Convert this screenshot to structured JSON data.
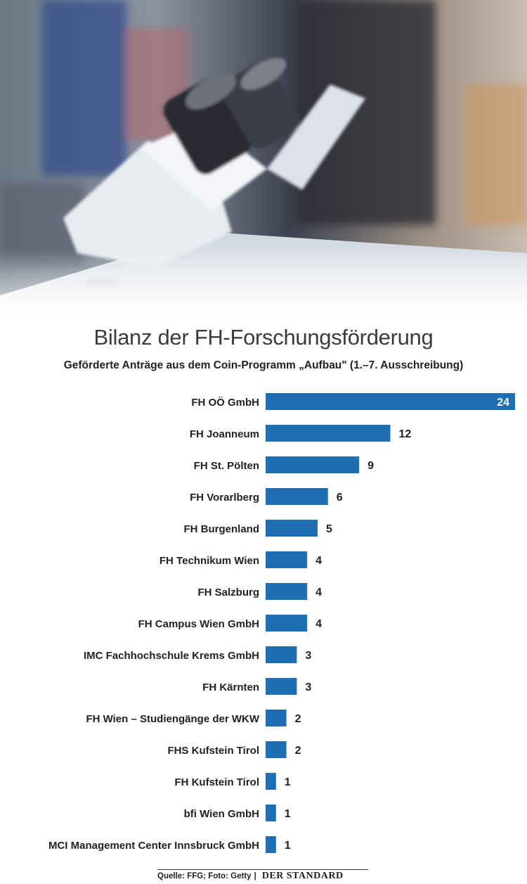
{
  "photo": {
    "icon": "microscope-photo"
  },
  "chart_data": {
    "type": "bar",
    "orientation": "horizontal",
    "title": "Bilanz der FH-Forschungsförderung",
    "subtitle": "Geförderte Anträge aus dem Coin-Programm „Aufbau\" (1.–7. Ausschreibung)",
    "categories": [
      "FH OÖ GmbH",
      "FH Joanneum",
      "FH St. Pölten",
      "FH Vorarlberg",
      "FH Burgenland",
      "FH Technikum Wien",
      "FH Salzburg",
      "FH Campus Wien GmbH",
      "IMC Fachhochschule Krems GmbH",
      "FH Kärnten",
      "FH Wien – Studiengänge der WKW",
      "FHS Kufstein Tirol",
      "FH Kufstein Tirol",
      "bfi Wien GmbH",
      "MCI Management Center Innsbruck GmbH"
    ],
    "values": [
      24,
      12,
      9,
      6,
      5,
      4,
      4,
      4,
      3,
      3,
      2,
      2,
      1,
      1,
      1
    ],
    "xlim": [
      0,
      24
    ],
    "bar_color": "#1f6db3",
    "grid": false,
    "legend": "none"
  },
  "footer": {
    "source": "Quelle: FFG; Foto: Getty",
    "separator": "|",
    "brand": "DER STANDARD"
  }
}
